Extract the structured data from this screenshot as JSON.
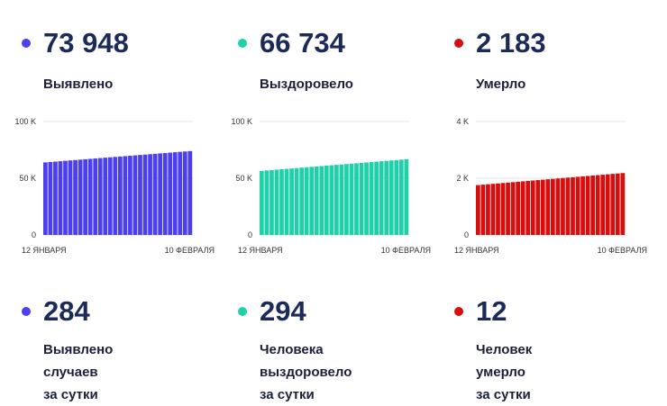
{
  "stats_total": [
    {
      "value": "73 948",
      "label": "Выявлено",
      "color": "#4b3ff0"
    },
    {
      "value": "66 734",
      "label": "Выздоровело",
      "color": "#1fd1a8"
    },
    {
      "value": "2 183",
      "label": "Умерло",
      "color": "#d80d0d"
    }
  ],
  "stats_daily": [
    {
      "value": "284",
      "label": "Выявлено случаев\nза сутки",
      "color": "#4b3ff0"
    },
    {
      "value": "294",
      "label": "Человека выздоровело\nза сутки",
      "color": "#1fd1a8"
    },
    {
      "value": "12",
      "label": "Человек умерло\nза сутки",
      "color": "#d80d0d"
    }
  ],
  "chart_data": [
    {
      "type": "bar",
      "x_start_label": "12 ЯНВАРЯ",
      "x_end_label": "10 ФЕВРАЛЯ",
      "y_ticks": [
        "0",
        "50 K",
        "100 K"
      ],
      "ylim": [
        0,
        100000
      ],
      "values_start": 64000,
      "values_end": 73948,
      "n_bars": 30,
      "color": "#4b3ff0",
      "grid": true
    },
    {
      "type": "bar",
      "x_start_label": "12 ЯНВАРЯ",
      "x_end_label": "10 ФЕВРАЛЯ",
      "y_ticks": [
        "0",
        "50 K",
        "100 K"
      ],
      "ylim": [
        0,
        100000
      ],
      "values_start": 56500,
      "values_end": 66734,
      "n_bars": 30,
      "color": "#1fd1a8",
      "grid": true
    },
    {
      "type": "bar",
      "x_start_label": "12 ЯНВАРЯ",
      "x_end_label": "10 ФЕВРАЛЯ",
      "y_ticks": [
        "0",
        "2 K",
        "4 K"
      ],
      "ylim": [
        0,
        4000
      ],
      "values_start": 1760,
      "values_end": 2183,
      "n_bars": 30,
      "color": "#d80d0d",
      "grid": true
    }
  ]
}
